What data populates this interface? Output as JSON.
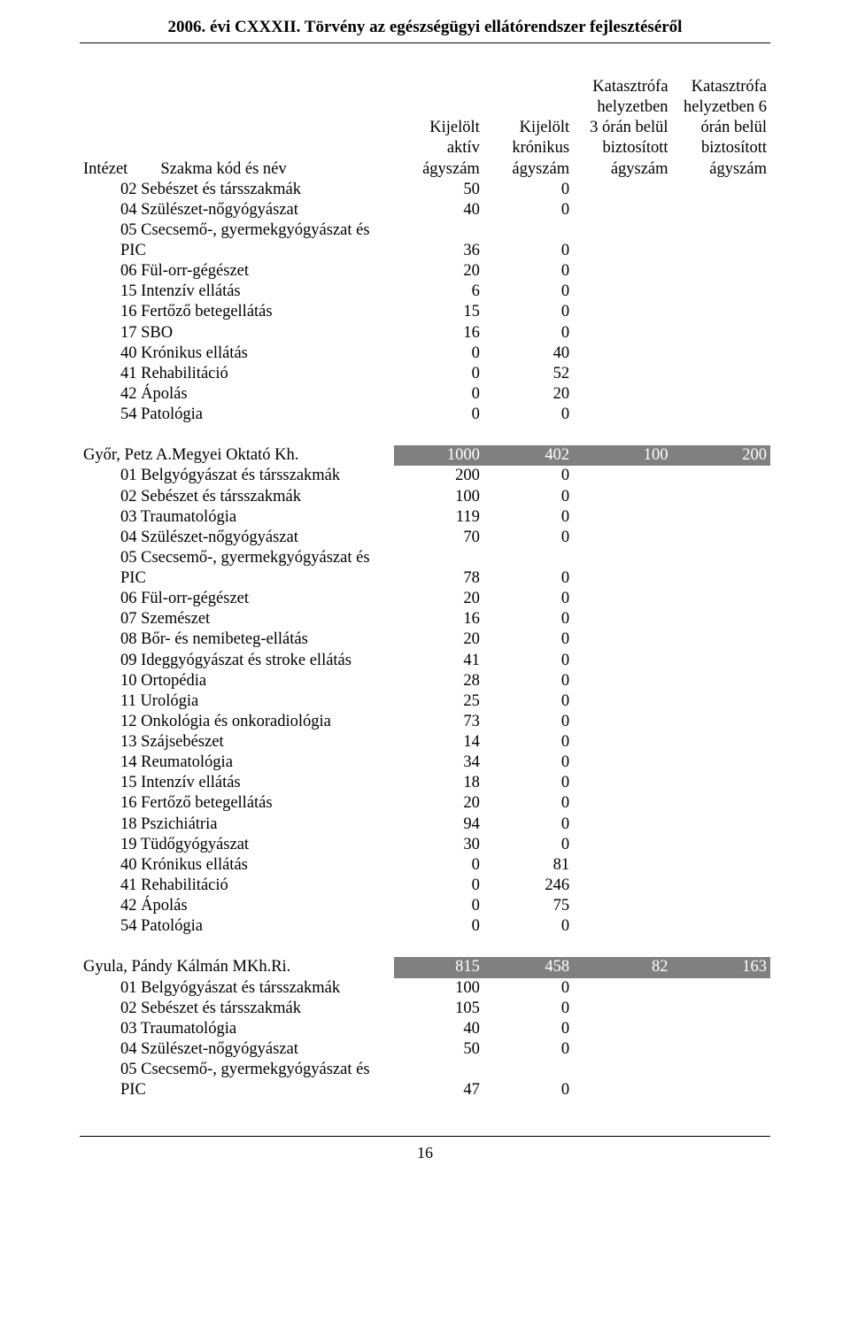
{
  "header_title": "2006. évi CXXXII. Törvény az egészségügyi ellátórendszer fejlesztéséről",
  "page_number": "16",
  "columns": {
    "c0": "Intézet",
    "c1": "Szakma kód és név",
    "c2_line1": "Kijelölt",
    "c2_line2": "aktív",
    "c2_line3": "ágyszám",
    "c3_line1": "Kijelölt",
    "c3_line2": "krónikus",
    "c3_line3": "ágyszám",
    "c4_line1": "Katasztrófa",
    "c4_line2": "helyzetben",
    "c4_line3": "3 órán belül",
    "c4_line4": "biztosított",
    "c4_line5": "ágyszám",
    "c5_line1": "Katasztrófa",
    "c5_line2": "helyzetben 6",
    "c5_line3": "órán belül",
    "c5_line4": "biztosított",
    "c5_line5": "ágyszám"
  },
  "groupA": {
    "rows": [
      {
        "name": "02 Sebészet és társszakmák",
        "a": "50",
        "k": "0"
      },
      {
        "name": "04 Szülészet-nőgyógyászat",
        "a": "40",
        "k": "0"
      },
      {
        "name": "05 Csecsemő-, gyermekgyógyászat és",
        "a": "",
        "k": ""
      },
      {
        "name": "PIC",
        "a": "36",
        "k": "0"
      },
      {
        "name": "06 Fül-orr-gégészet",
        "a": "20",
        "k": "0"
      },
      {
        "name": "15 Intenzív ellátás",
        "a": "6",
        "k": "0"
      },
      {
        "name": "16 Fertőző betegellátás",
        "a": "15",
        "k": "0"
      },
      {
        "name": "17 SBO",
        "a": "16",
        "k": "0"
      },
      {
        "name": "40 Krónikus ellátás",
        "a": "0",
        "k": "40"
      },
      {
        "name": "41 Rehabilitáció",
        "a": "0",
        "k": "52"
      },
      {
        "name": "42 Ápolás",
        "a": "0",
        "k": "20"
      },
      {
        "name": "54 Patológia",
        "a": "0",
        "k": "0"
      }
    ]
  },
  "groupB": {
    "title": "Győr, Petz A.Megyei Oktató Kh.",
    "totals": {
      "a": "1000",
      "k": "402",
      "c3": "100",
      "c6": "200"
    },
    "rows": [
      {
        "name": "01 Belgyógyászat és társszakmák",
        "a": "200",
        "k": "0"
      },
      {
        "name": "02 Sebészet és társszakmák",
        "a": "100",
        "k": "0"
      },
      {
        "name": "03 Traumatológia",
        "a": "119",
        "k": "0"
      },
      {
        "name": "04 Szülészet-nőgyógyászat",
        "a": "70",
        "k": "0"
      },
      {
        "name": "05 Csecsemő-, gyermekgyógyászat és",
        "a": "",
        "k": ""
      },
      {
        "name": "PIC",
        "a": "78",
        "k": "0"
      },
      {
        "name": "06 Fül-orr-gégészet",
        "a": "20",
        "k": "0"
      },
      {
        "name": "07 Szemészet",
        "a": "16",
        "k": "0"
      },
      {
        "name": "08 Bőr- és nemibeteg-ellátás",
        "a": "20",
        "k": "0"
      },
      {
        "name": "09 Ideggyógyászat és stroke ellátás",
        "a": "41",
        "k": "0"
      },
      {
        "name": "10 Ortopédia",
        "a": "28",
        "k": "0"
      },
      {
        "name": "11 Urológia",
        "a": "25",
        "k": "0"
      },
      {
        "name": "12 Onkológia és onkoradiológia",
        "a": "73",
        "k": "0"
      },
      {
        "name": "13 Szájsebészet",
        "a": "14",
        "k": "0"
      },
      {
        "name": "14 Reumatológia",
        "a": "34",
        "k": "0"
      },
      {
        "name": "15 Intenzív ellátás",
        "a": "18",
        "k": "0"
      },
      {
        "name": "16 Fertőző betegellátás",
        "a": "20",
        "k": "0"
      },
      {
        "name": "18 Pszichiátria",
        "a": "94",
        "k": "0"
      },
      {
        "name": "19 Tüdőgyógyászat",
        "a": "30",
        "k": "0"
      },
      {
        "name": "40 Krónikus ellátás",
        "a": "0",
        "k": "81"
      },
      {
        "name": "41 Rehabilitáció",
        "a": "0",
        "k": "246"
      },
      {
        "name": "42 Ápolás",
        "a": "0",
        "k": "75"
      },
      {
        "name": "54 Patológia",
        "a": "0",
        "k": "0"
      }
    ]
  },
  "groupC": {
    "title": "Gyula, Pándy Kálmán MKh.Ri.",
    "totals": {
      "a": "815",
      "k": "458",
      "c3": "82",
      "c6": "163"
    },
    "rows": [
      {
        "name": "01 Belgyógyászat és társszakmák",
        "a": "100",
        "k": "0"
      },
      {
        "name": "02 Sebészet és társszakmák",
        "a": "105",
        "k": "0"
      },
      {
        "name": "03 Traumatológia",
        "a": "40",
        "k": "0"
      },
      {
        "name": "04 Szülészet-nőgyógyászat",
        "a": "50",
        "k": "0"
      },
      {
        "name": "05 Csecsemő-, gyermekgyógyászat és",
        "a": "",
        "k": ""
      },
      {
        "name": "PIC",
        "a": "47",
        "k": "0"
      }
    ]
  }
}
